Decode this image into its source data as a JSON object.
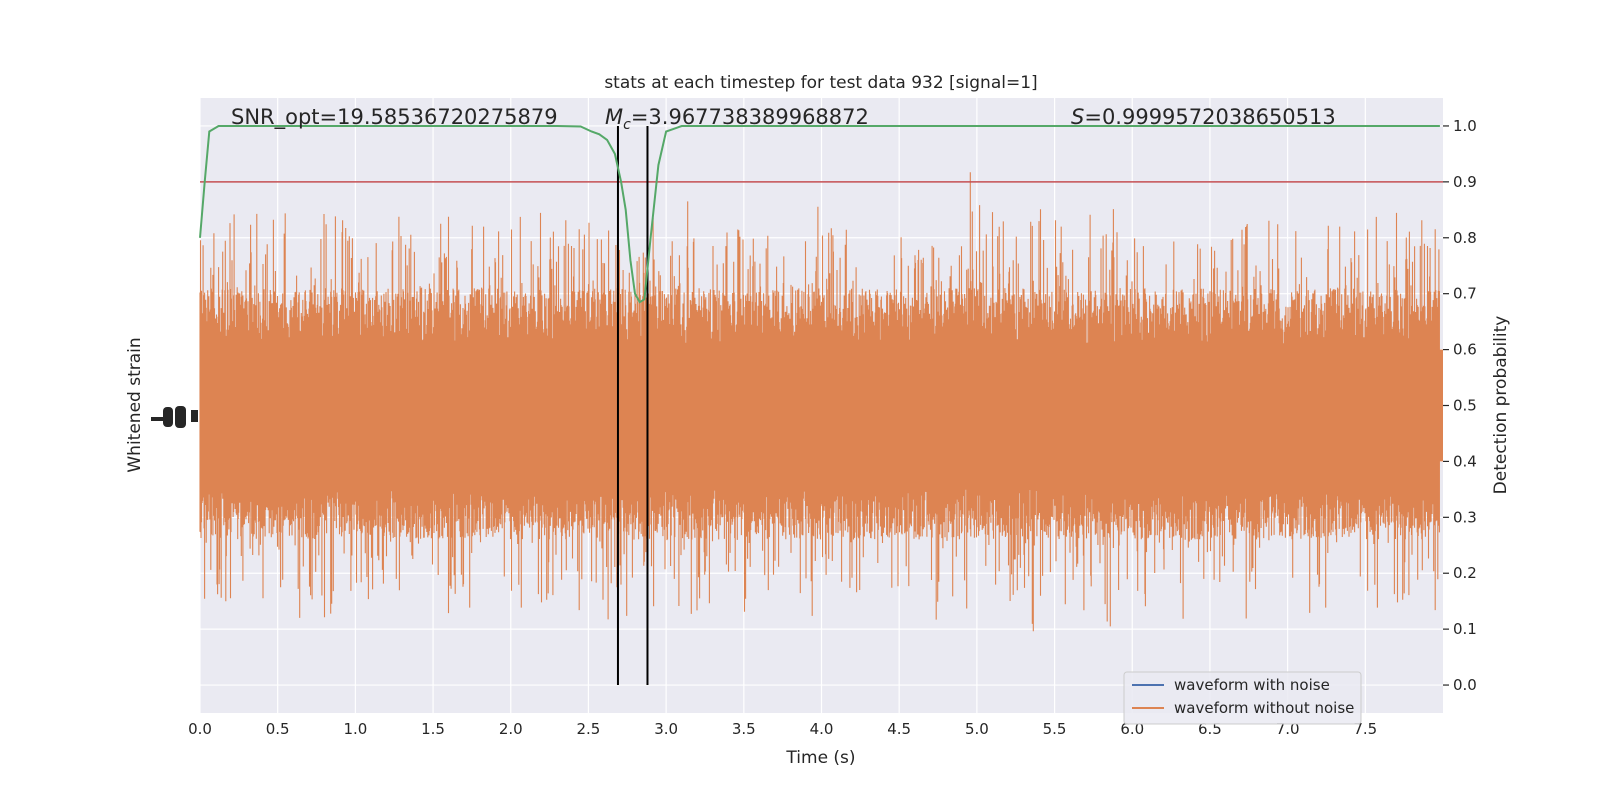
{
  "chart_data": {
    "type": "line",
    "title": "stats at each timestep for test data 932 [signal=1]",
    "xlabel": "Time (s)",
    "ylabel_left": "Whitened strain",
    "ylabel_right": "Detection probability",
    "xlim": [
      0.0,
      8.0
    ],
    "ylim_right": [
      -0.05,
      1.05
    ],
    "x_ticks": [
      "0.0",
      "0.5",
      "1.0",
      "1.5",
      "2.0",
      "2.5",
      "3.0",
      "3.5",
      "4.0",
      "4.5",
      "5.0",
      "5.5",
      "6.0",
      "6.5",
      "7.0",
      "7.5"
    ],
    "y_ticks_right": [
      "0.0",
      "0.1",
      "0.2",
      "0.3",
      "0.4",
      "0.5",
      "0.6",
      "0.7",
      "0.8",
      "0.9",
      "1.0"
    ],
    "annotations": {
      "snr": "SNR_opt=19.58536720275879",
      "mc_symbol": "M",
      "mc_sub": "c",
      "mc_value": "=3.967738389968872",
      "s_symbol": "S",
      "s_value": "=0.9999572038650513"
    },
    "threshold": 0.9,
    "event_window": [
      2.69,
      2.88
    ],
    "detection_probability": {
      "x": [
        0.0,
        0.03,
        0.06,
        0.12,
        0.5,
        1.0,
        1.5,
        2.0,
        2.3,
        2.45,
        2.52,
        2.57,
        2.62,
        2.67,
        2.71,
        2.74,
        2.77,
        2.8,
        2.83,
        2.86,
        2.9,
        2.95,
        3.0,
        3.05,
        3.1,
        3.3,
        4.0,
        5.0,
        6.0,
        7.0,
        7.98
      ],
      "y": [
        0.8,
        0.9,
        0.99,
        1.0,
        1.0,
        1.0,
        1.0,
        1.0,
        1.0,
        0.999,
        0.99,
        0.985,
        0.975,
        0.95,
        0.9,
        0.85,
        0.76,
        0.7,
        0.685,
        0.69,
        0.8,
        0.93,
        0.99,
        0.995,
        1.0,
        1.0,
        1.0,
        1.0,
        1.0,
        1.0,
        1.0
      ]
    },
    "series": [
      {
        "name": "waveform with noise",
        "color": "#4c72b0"
      },
      {
        "name": "waveform without noise",
        "color": "#dd8452"
      }
    ],
    "colors": {
      "probability": "#55a868",
      "threshold": "#c44e52",
      "event_lines": "#000000",
      "axes_bg": "#eaeaf2",
      "grid": "#ffffff"
    },
    "legend_loc": "lower right"
  }
}
